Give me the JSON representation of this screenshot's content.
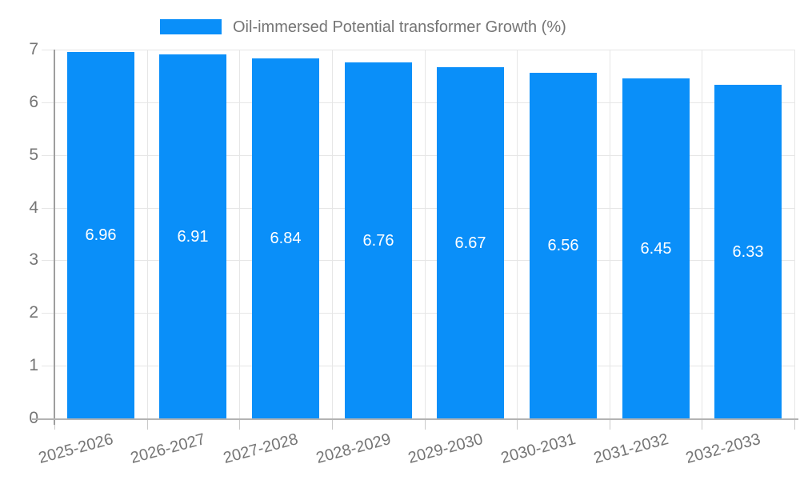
{
  "legend": {
    "label": "Oil-immersed Potential transformer Growth (%)"
  },
  "chart_data": {
    "type": "bar",
    "title": "Oil-immersed Potential transformer Growth (%)",
    "categories": [
      "2025-2026",
      "2026-2027",
      "2027-2028",
      "2028-2029",
      "2029-2030",
      "2030-2031",
      "2031-2032",
      "2032-2033"
    ],
    "values": [
      6.96,
      6.91,
      6.84,
      6.76,
      6.67,
      6.56,
      6.45,
      6.33
    ],
    "bar_value_labels": [
      "6.96",
      "6.91",
      "6.84",
      "6.76",
      "6.67",
      "6.56",
      "6.45",
      "6.33"
    ],
    "xlabel": "",
    "ylabel": "",
    "ylim": [
      0,
      7
    ],
    "yticks": [
      0,
      1,
      2,
      3,
      4,
      5,
      6,
      7
    ],
    "grid": true,
    "legend_position": "top",
    "colors": {
      "bar": "#0a8ff9",
      "grid": "#e6e6e6",
      "x_axis_line": "#b3b3b3",
      "y_axis_line": "#9e9e9e",
      "tick": "#c9c9c9",
      "axis_text": "#757575",
      "bar_label": "#ffffff"
    }
  }
}
